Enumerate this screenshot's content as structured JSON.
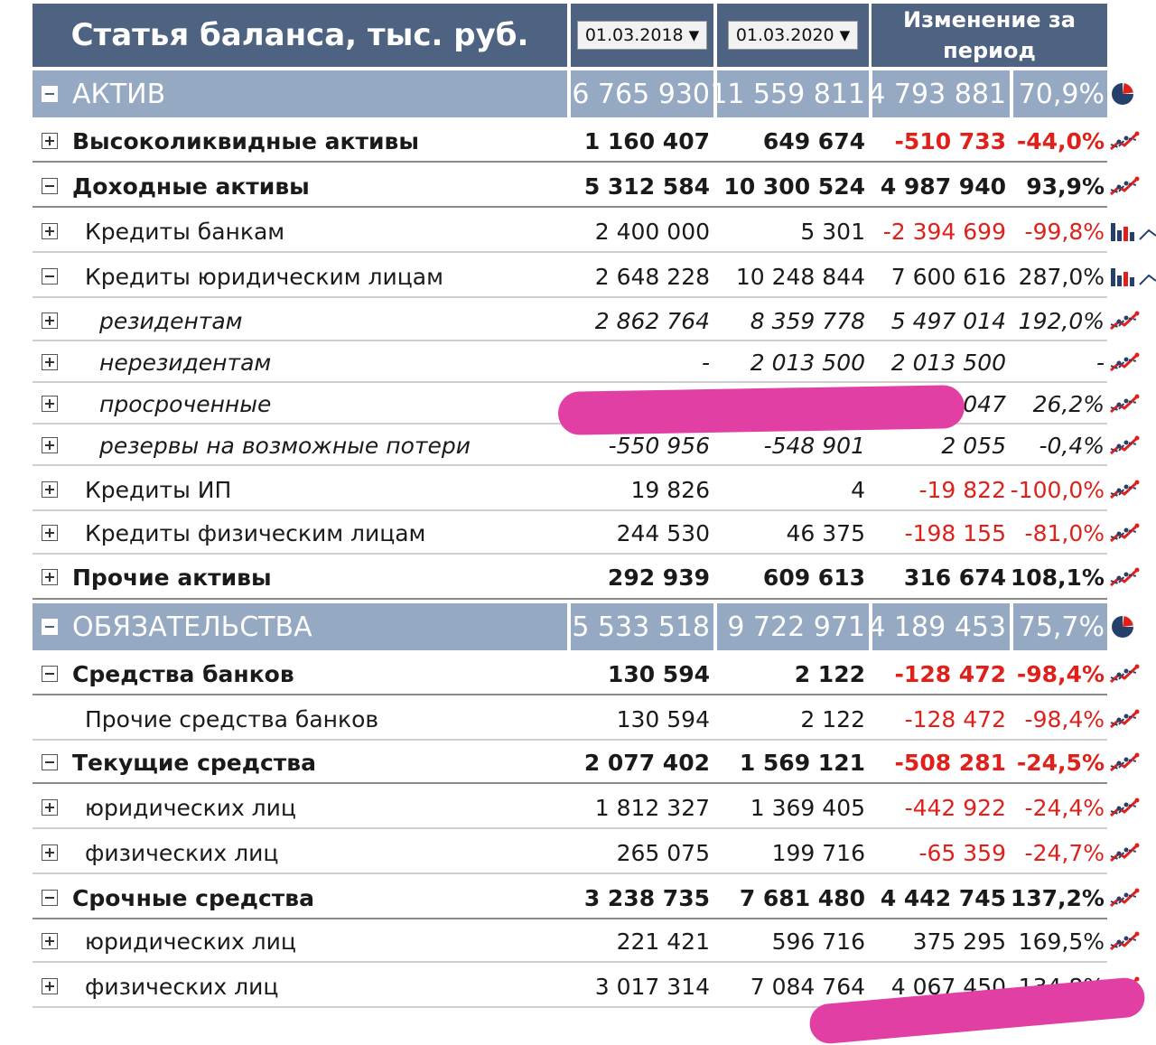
{
  "header": {
    "title": "Статья баланса, тыс. руб.",
    "date1": "01.03.2018",
    "date2": "01.03.2020",
    "change_label": "Изменение за период"
  },
  "rows": [
    {
      "name": "АКТИВ",
      "v1": "6 765 930",
      "v2": "11 559 811",
      "chg": "4 793 881",
      "pct": "70,9%",
      "icon": "pie-chart-icon"
    },
    {
      "name": "Высоколиквидные активы",
      "v1": "1 160 407",
      "v2": "649 674",
      "chg": "-510 733",
      "pct": "-44,0%",
      "icon": "trend-chart-icon"
    },
    {
      "name": "Доходные активы",
      "v1": "5 312 584",
      "v2": "10 300 524",
      "chg": "4 987 940",
      "pct": "93,9%",
      "icon": "trend-chart-icon"
    },
    {
      "name": "Кредиты банкам",
      "v1": "2 400 000",
      "v2": "5 301",
      "chg": "-2 394 699",
      "pct": "-99,8%",
      "icon": "bar-chart-icon"
    },
    {
      "name": "Кредиты юридическим лицам",
      "v1": "2 648 228",
      "v2": "10 248 844",
      "chg": "7 600 616",
      "pct": "287,0%",
      "icon": "bar-chart-icon"
    },
    {
      "name": "резидентам",
      "v1": "2 862 764",
      "v2": "8 359 778",
      "chg": "5 497 014",
      "pct": "192,0%",
      "icon": "trend-chart-icon"
    },
    {
      "name": "нерезидентам",
      "v1": "-",
      "v2": "2 013 500",
      "chg": "2 013 500",
      "pct": "-",
      "icon": "trend-chart-icon"
    },
    {
      "name": "просроченные",
      "v1": "",
      "v2": "",
      "chg": "047",
      "pct": "26,2%",
      "icon": "trend-chart-icon"
    },
    {
      "name": "резервы на возможные потери",
      "v1": "-550 956",
      "v2": "-548 901",
      "chg": "2 055",
      "pct": "-0,4%",
      "icon": "trend-chart-icon"
    },
    {
      "name": "Кредиты ИП",
      "v1": "19 826",
      "v2": "4",
      "chg": "-19 822",
      "pct": "-100,0%",
      "icon": "trend-chart-icon"
    },
    {
      "name": "Кредиты физическим лицам",
      "v1": "244 530",
      "v2": "46 375",
      "chg": "-198 155",
      "pct": "-81,0%",
      "icon": "trend-chart-icon"
    },
    {
      "name": "Прочие активы",
      "v1": "292 939",
      "v2": "609 613",
      "chg": "316 674",
      "pct": "108,1%",
      "icon": "trend-chart-icon"
    },
    {
      "name": "ОБЯЗАТЕЛЬСТВА",
      "v1": "5 533 518",
      "v2": "9 722 971",
      "chg": "4 189 453",
      "pct": "75,7%",
      "icon": "pie-chart-icon"
    },
    {
      "name": "Средства банков",
      "v1": "130 594",
      "v2": "2 122",
      "chg": "-128 472",
      "pct": "-98,4%",
      "icon": "trend-chart-icon"
    },
    {
      "name": "Прочие средства банков",
      "v1": "130 594",
      "v2": "2 122",
      "chg": "-128 472",
      "pct": "-98,4%",
      "icon": "trend-chart-icon"
    },
    {
      "name": "Текущие средства",
      "v1": "2 077 402",
      "v2": "1 569 121",
      "chg": "-508 281",
      "pct": "-24,5%",
      "icon": "trend-chart-icon"
    },
    {
      "name": "юридических лиц",
      "v1": "1 812 327",
      "v2": "1 369 405",
      "chg": "-442 922",
      "pct": "-24,4%",
      "icon": "trend-chart-icon"
    },
    {
      "name": "физических лиц",
      "v1": "265 075",
      "v2": "199 716",
      "chg": "-65 359",
      "pct": "-24,7%",
      "icon": "trend-chart-icon"
    },
    {
      "name": "Срочные средства",
      "v1": "3 238 735",
      "v2": "7 681 480",
      "chg": "4 442 745",
      "pct": "137,2%",
      "icon": "trend-chart-icon"
    },
    {
      "name": "юридических лиц",
      "v1": "221 421",
      "v2": "596 716",
      "chg": "375 295",
      "pct": "169,5%",
      "icon": "trend-chart-icon"
    },
    {
      "name": "физических лиц",
      "v1": "3 017 314",
      "v2": "7 084 764",
      "chg": "4 067 450",
      "pct": "134,8%",
      "icon": "trend-chart-icon"
    }
  ],
  "colors": {
    "header_bg": "#4e6381",
    "section_bg": "#96a9c3",
    "negative": "#e0201b",
    "marker": "#e23fa5",
    "icon_red": "#e0201b",
    "icon_blue": "#24406b"
  }
}
